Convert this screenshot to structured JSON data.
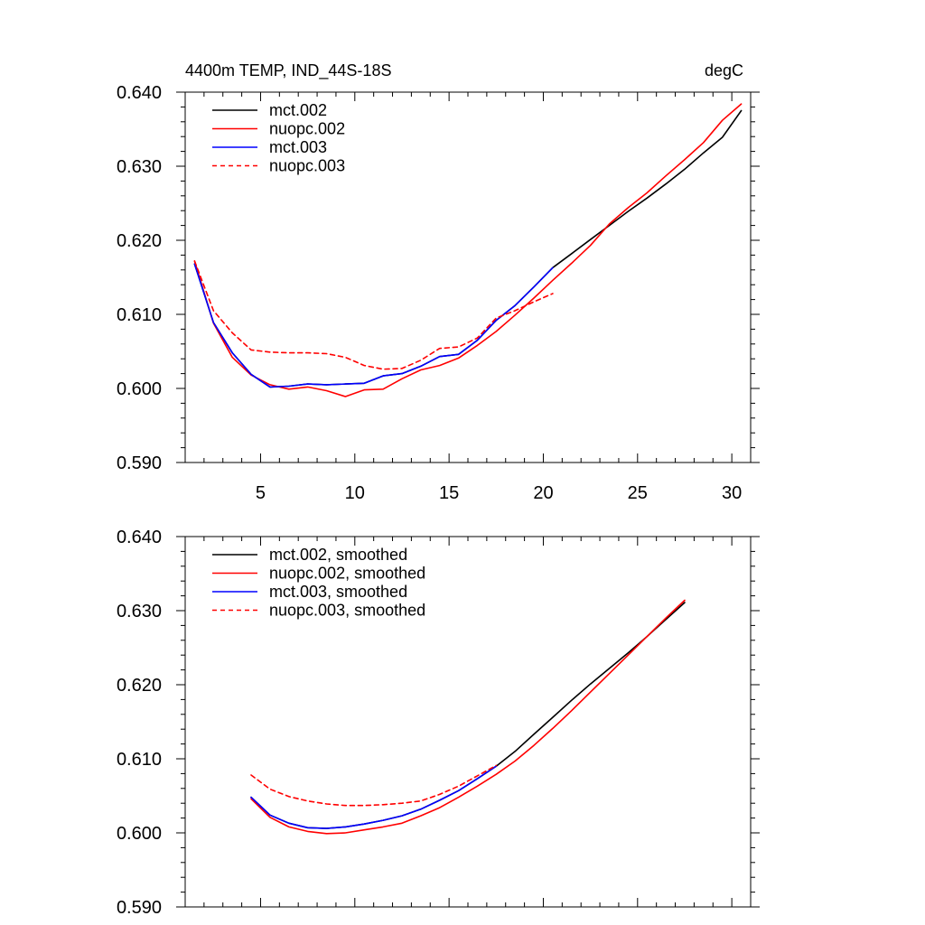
{
  "chart_data": [
    {
      "type": "line",
      "title_left": "4400m TEMP, IND_44S-18S",
      "title_right": "degC",
      "xlim": [
        1,
        31
      ],
      "ylim": [
        0.59,
        0.64
      ],
      "x_ticks": [
        5,
        10,
        15,
        20,
        25,
        30
      ],
      "x_tick_labels": [
        "5",
        "10",
        "15",
        "20",
        "25",
        "30"
      ],
      "y_ticks": [
        0.59,
        0.6,
        0.61,
        0.62,
        0.63,
        0.64
      ],
      "y_tick_labels": [
        "0.590",
        "0.600",
        "0.610",
        "0.620",
        "0.630",
        "0.640"
      ],
      "grid": false,
      "legend_position": "top-left",
      "series": [
        {
          "name": "mct.002",
          "color": "#000000",
          "dash": "solid",
          "x": [
            1.5,
            2.5,
            3.5,
            4.5,
            5.5,
            6.5,
            7.5,
            8.5,
            9.5,
            10.5,
            11.5,
            12.5,
            13.5,
            14.5,
            15.5,
            16.5,
            17.5,
            18.5,
            19.5,
            20.5,
            21.5,
            22.5,
            23.5,
            24.5,
            25.5,
            26.5,
            27.5,
            28.5,
            29.5,
            30.5
          ],
          "y": [
            0.6168,
            0.6089,
            0.6048,
            0.6019,
            0.6002,
            0.6003,
            0.6006,
            0.6005,
            0.6006,
            0.6007,
            0.6017,
            0.602,
            0.603,
            0.6043,
            0.6046,
            0.6065,
            0.6092,
            0.6112,
            0.6137,
            0.6163,
            0.6182,
            0.6201,
            0.622,
            0.6239,
            0.6257,
            0.6276,
            0.6296,
            0.6318,
            0.6339,
            0.6375
          ]
        },
        {
          "name": "nuopc.002",
          "color": "#ff0000",
          "dash": "solid",
          "x": [
            1.5,
            2.5,
            3.5,
            4.5,
            5.5,
            6.5,
            7.5,
            8.5,
            9.5,
            10.5,
            11.5,
            12.5,
            13.5,
            14.5,
            15.5,
            16.5,
            17.5,
            18.5,
            19.5,
            20.5,
            21.5,
            22.5,
            23.5,
            24.5,
            25.5,
            26.5,
            27.5,
            28.5,
            29.5,
            30.5
          ],
          "y": [
            0.6172,
            0.6088,
            0.6042,
            0.6018,
            0.6005,
            0.5999,
            0.6002,
            0.5997,
            0.5989,
            0.5998,
            0.5999,
            0.6013,
            0.6025,
            0.6031,
            0.6041,
            0.6058,
            0.6077,
            0.6099,
            0.6122,
            0.6146,
            0.6169,
            0.6193,
            0.6222,
            0.6244,
            0.6264,
            0.6287,
            0.6309,
            0.6332,
            0.6362,
            0.6384
          ]
        },
        {
          "name": "mct.003",
          "color": "#0000ff",
          "dash": "solid",
          "x": [
            1.5,
            2.5,
            3.5,
            4.5,
            5.5,
            6.5,
            7.5,
            8.5,
            9.5,
            10.5,
            11.5,
            12.5,
            13.5,
            14.5,
            15.5,
            16.5,
            17.5,
            18.5,
            19.5,
            20.5
          ],
          "y": [
            0.6168,
            0.6089,
            0.6048,
            0.6019,
            0.6002,
            0.6003,
            0.6006,
            0.6005,
            0.6006,
            0.6007,
            0.6017,
            0.602,
            0.603,
            0.6043,
            0.6046,
            0.6065,
            0.6092,
            0.6112,
            0.6137,
            0.6163
          ]
        },
        {
          "name": "nuopc.003",
          "color": "#ff0000",
          "dash": "dashed",
          "x": [
            1.5,
            2.5,
            3.5,
            4.5,
            5.5,
            6.5,
            7.5,
            8.5,
            9.5,
            10.5,
            11.5,
            12.5,
            13.5,
            14.5,
            15.5,
            16.5,
            17.5,
            18.5,
            19.5,
            20.5
          ],
          "y": [
            0.6172,
            0.6105,
            0.6075,
            0.6052,
            0.6049,
            0.6048,
            0.6048,
            0.6047,
            0.6042,
            0.6031,
            0.6026,
            0.6027,
            0.6038,
            0.6054,
            0.6056,
            0.6068,
            0.6095,
            0.6105,
            0.6117,
            0.6128
          ]
        }
      ]
    },
    {
      "type": "line",
      "xlim": [
        1,
        31
      ],
      "ylim": [
        0.59,
        0.64
      ],
      "x_ticks": [
        5,
        10,
        15,
        20,
        25,
        30
      ],
      "y_ticks": [
        0.59,
        0.6,
        0.61,
        0.62,
        0.63,
        0.64
      ],
      "y_tick_labels": [
        "0.590",
        "0.600",
        "0.610",
        "0.620",
        "0.630",
        "0.640"
      ],
      "grid": false,
      "legend_position": "top-left",
      "series": [
        {
          "name": "mct.002, smoothed",
          "color": "#000000",
          "dash": "solid",
          "x": [
            4.5,
            5.5,
            6.5,
            7.5,
            8.5,
            9.5,
            10.5,
            11.5,
            12.5,
            13.5,
            14.5,
            15.5,
            16.5,
            17.5,
            18.5,
            19.5,
            20.5,
            21.5,
            22.5,
            23.5,
            24.5,
            25.5,
            26.5,
            27.5
          ],
          "y": [
            0.6048,
            0.6024,
            0.6013,
            0.6007,
            0.6006,
            0.6008,
            0.6012,
            0.6017,
            0.6023,
            0.6032,
            0.6044,
            0.6057,
            0.6073,
            0.609,
            0.611,
            0.6133,
            0.6156,
            0.6179,
            0.6201,
            0.6222,
            0.6243,
            0.6265,
            0.6288,
            0.6311
          ]
        },
        {
          "name": "nuopc.002, smoothed",
          "color": "#ff0000",
          "dash": "solid",
          "x": [
            4.5,
            5.5,
            6.5,
            7.5,
            8.5,
            9.5,
            10.5,
            11.5,
            12.5,
            13.5,
            14.5,
            15.5,
            16.5,
            17.5,
            18.5,
            19.5,
            20.5,
            21.5,
            22.5,
            23.5,
            24.5,
            25.5,
            26.5,
            27.5
          ],
          "y": [
            0.6046,
            0.6021,
            0.6008,
            0.6002,
            0.5999,
            0.6,
            0.6004,
            0.6008,
            0.6013,
            0.6023,
            0.6034,
            0.6048,
            0.6063,
            0.6079,
            0.6097,
            0.6118,
            0.6141,
            0.6165,
            0.619,
            0.6215,
            0.624,
            0.6265,
            0.629,
            0.6314
          ]
        },
        {
          "name": "mct.003, smoothed",
          "color": "#0000ff",
          "dash": "solid",
          "x": [
            4.5,
            5.5,
            6.5,
            7.5,
            8.5,
            9.5,
            10.5,
            11.5,
            12.5,
            13.5,
            14.5,
            15.5,
            16.5,
            17.5
          ],
          "y": [
            0.6048,
            0.6024,
            0.6013,
            0.6007,
            0.6006,
            0.6008,
            0.6012,
            0.6017,
            0.6023,
            0.6032,
            0.6044,
            0.6057,
            0.6073,
            0.609
          ]
        },
        {
          "name": "nuopc.003, smoothed",
          "color": "#ff0000",
          "dash": "dashed",
          "x": [
            4.5,
            5.5,
            6.5,
            7.5,
            8.5,
            9.5,
            10.5,
            11.5,
            12.5,
            13.5,
            14.5,
            15.5,
            16.5,
            17.5
          ],
          "y": [
            0.6078,
            0.6059,
            0.6049,
            0.6043,
            0.6039,
            0.6037,
            0.6037,
            0.6038,
            0.604,
            0.6043,
            0.6052,
            0.6063,
            0.6077,
            0.6091
          ]
        }
      ]
    }
  ]
}
